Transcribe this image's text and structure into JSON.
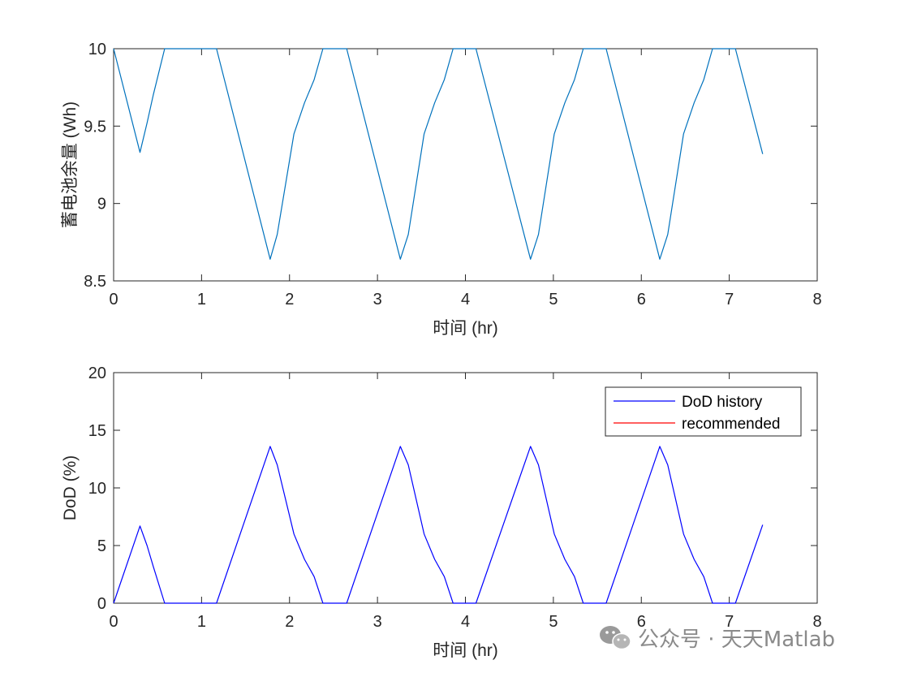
{
  "chart_data": [
    {
      "type": "line",
      "title": "",
      "xlabel": "时间 (hr)",
      "ylabel": "蓄电池余量 (Wh)",
      "xlim": [
        0,
        8
      ],
      "ylim": [
        8.5,
        10
      ],
      "xticks": [
        "0",
        "1",
        "2",
        "3",
        "4",
        "5",
        "6",
        "7",
        "8"
      ],
      "yticks": [
        "8.5",
        "9",
        "9.5",
        "10"
      ],
      "grid": false,
      "series": [
        {
          "color": "#0072BD",
          "x": [
            0,
            0.3,
            0.38,
            0.45,
            0.58,
            1.17,
            1.78,
            1.86,
            2.05,
            2.17,
            2.28,
            2.38,
            2.65,
            3.26,
            3.35,
            3.53,
            3.65,
            3.76,
            3.86,
            4.12,
            4.74,
            4.83,
            5.01,
            5.13,
            5.24,
            5.34,
            5.6,
            6.21,
            6.3,
            6.48,
            6.6,
            6.71,
            6.81,
            7.07,
            7.38
          ],
          "y": [
            10,
            9.33,
            9.52,
            9.7,
            10,
            10,
            8.64,
            8.8,
            9.45,
            9.65,
            9.8,
            10,
            10,
            8.64,
            8.8,
            9.45,
            9.65,
            9.8,
            10,
            10,
            8.64,
            8.8,
            9.45,
            9.65,
            9.8,
            10,
            10,
            8.64,
            8.8,
            9.45,
            9.65,
            9.8,
            10,
            10,
            9.32
          ]
        }
      ]
    },
    {
      "type": "line",
      "title": "",
      "xlabel": "时间 (hr)",
      "ylabel": "DoD (%)",
      "xlim": [
        0,
        8
      ],
      "ylim": [
        0,
        20
      ],
      "xticks": [
        "0",
        "1",
        "2",
        "3",
        "4",
        "5",
        "6",
        "7",
        "8"
      ],
      "yticks": [
        "0",
        "5",
        "10",
        "15",
        "20"
      ],
      "grid": false,
      "legend_position": "top-right",
      "series": [
        {
          "name": "DoD history",
          "color": "#0000FF",
          "x": [
            0,
            0.3,
            0.38,
            0.45,
            0.58,
            1.17,
            1.78,
            1.86,
            2.05,
            2.17,
            2.28,
            2.38,
            2.65,
            3.26,
            3.35,
            3.53,
            3.65,
            3.76,
            3.86,
            4.12,
            4.74,
            4.83,
            5.01,
            5.13,
            5.24,
            5.34,
            5.6,
            6.21,
            6.3,
            6.48,
            6.6,
            6.71,
            6.81,
            7.07,
            7.38
          ],
          "y": [
            0,
            6.7,
            5.0,
            3.2,
            0,
            0,
            13.6,
            12.0,
            6.0,
            3.8,
            2.3,
            0,
            0,
            13.6,
            12.0,
            6.0,
            3.8,
            2.3,
            0,
            0,
            13.6,
            12.0,
            6.0,
            3.8,
            2.3,
            0,
            0,
            13.6,
            12.0,
            6.0,
            3.8,
            2.3,
            0,
            0,
            6.8
          ]
        },
        {
          "name": "recommended",
          "color": "#FF0000",
          "x": [],
          "y": []
        }
      ]
    }
  ],
  "watermark": {
    "text": "公众号 · 天天Matlab",
    "icon": "wechat-icon"
  }
}
